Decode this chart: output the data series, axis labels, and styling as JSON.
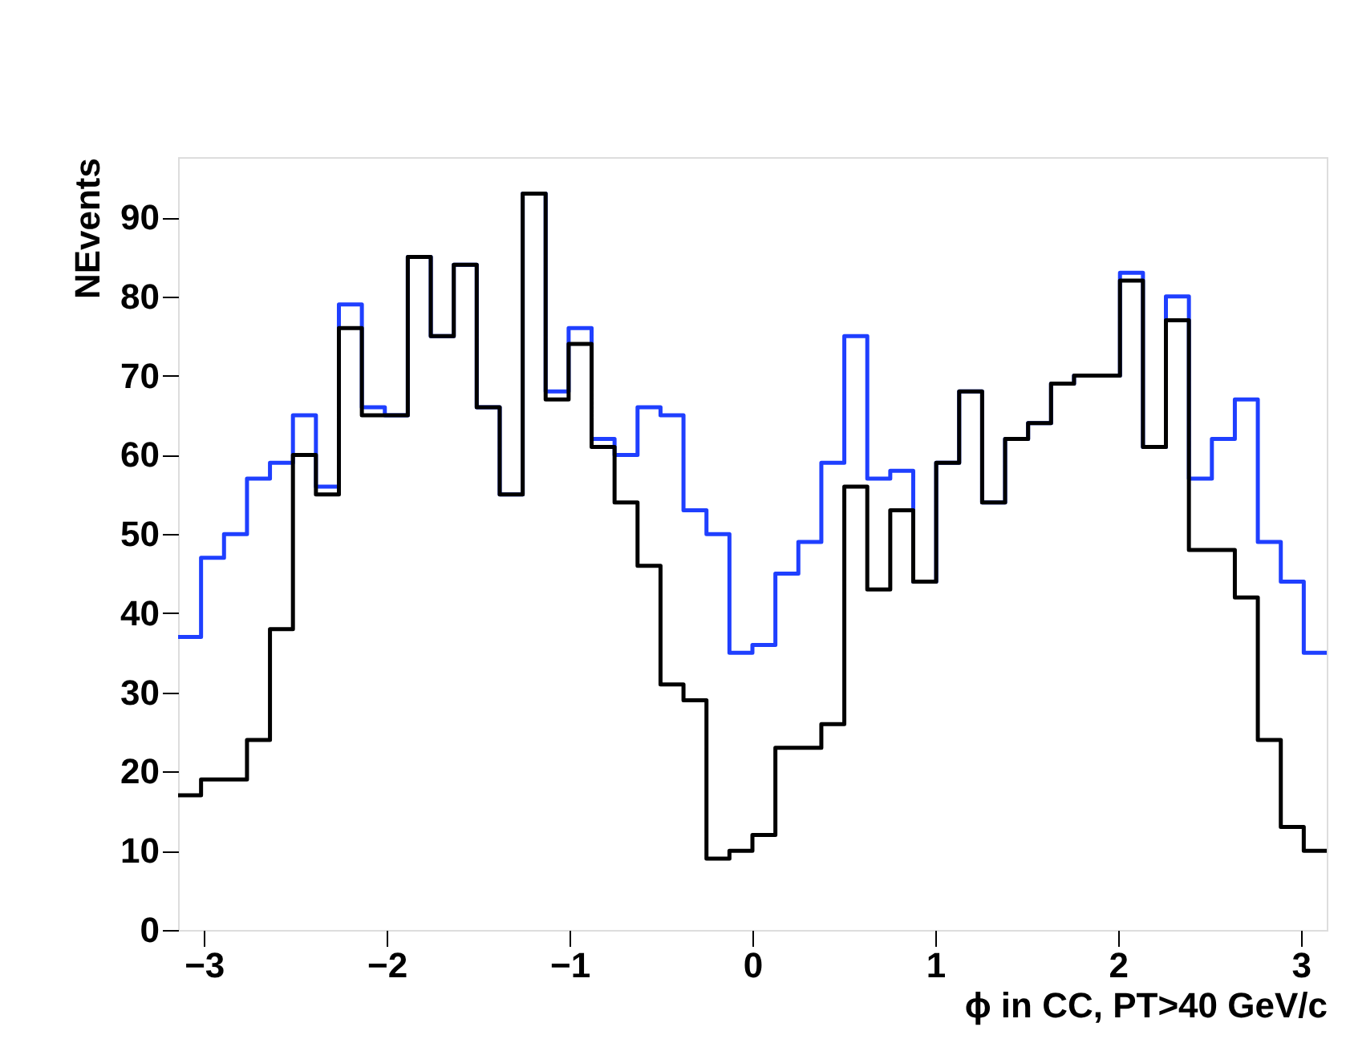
{
  "chart_data": {
    "type": "histogram",
    "xlabel": "ϕ in CC, PT>40 GeV/c",
    "ylabel": "NEvents",
    "bins": [
      -3.1416,
      -3.0159,
      -2.8903,
      -2.7646,
      -2.6389,
      -2.5133,
      -2.3876,
      -2.2619,
      -2.1363,
      -2.0106,
      -1.885,
      -1.7593,
      -1.6336,
      -1.508,
      -1.3823,
      -1.2566,
      -1.131,
      -1.0053,
      -0.8796,
      -0.754,
      -0.6283,
      -0.5027,
      -0.377,
      -0.2513,
      -0.1257,
      0,
      0.1257,
      0.2513,
      0.377,
      0.5027,
      0.6283,
      0.754,
      0.8796,
      1.0053,
      1.131,
      1.2566,
      1.3823,
      1.508,
      1.6336,
      1.7593,
      1.885,
      2.0106,
      2.1363,
      2.2619,
      2.3876,
      2.5133,
      2.6389,
      2.7646,
      2.8903,
      3.0159,
      3.1416
    ],
    "series": [
      {
        "color": "#1f3fff",
        "values": [
          37,
          47,
          50,
          57,
          59,
          65,
          56,
          79,
          66,
          65,
          85,
          75,
          84,
          66,
          55,
          93,
          68,
          76,
          62,
          60,
          66,
          65,
          53,
          50,
          35,
          36,
          45,
          49,
          59,
          75,
          57,
          58,
          44,
          59,
          68,
          54,
          62,
          64,
          69,
          70,
          70,
          83,
          61,
          80,
          57,
          62,
          67,
          49,
          44,
          35
        ]
      },
      {
        "color": "#000000",
        "values": [
          17,
          19,
          19,
          24,
          38,
          60,
          55,
          76,
          65,
          65,
          85,
          75,
          84,
          66,
          55,
          93,
          67,
          74,
          61,
          54,
          46,
          31,
          29,
          9,
          10,
          12,
          23,
          23,
          26,
          56,
          43,
          53,
          44,
          59,
          68,
          54,
          62,
          64,
          69,
          70,
          70,
          82,
          61,
          77,
          48,
          48,
          42,
          24,
          13,
          10
        ]
      }
    ],
    "xlim": [
      -3.1416,
      3.1416
    ],
    "ylim": [
      0,
      97.6
    ],
    "xticks": [
      -3,
      -2,
      -1,
      0,
      1,
      2,
      3
    ],
    "yticks": [
      0,
      10,
      20,
      30,
      40,
      50,
      60,
      70,
      80,
      90
    ],
    "grid": false
  }
}
